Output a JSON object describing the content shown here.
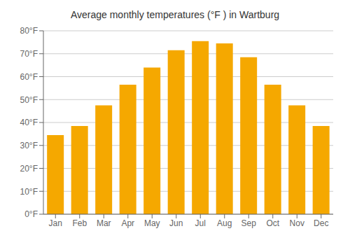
{
  "chart_data": {
    "type": "bar",
    "title": "Average monthly temperatures (°F ) in Wartburg",
    "categories": [
      "Jan",
      "Feb",
      "Mar",
      "Apr",
      "May",
      "Jun",
      "Jul",
      "Aug",
      "Sep",
      "Oct",
      "Nov",
      "Dec"
    ],
    "values": [
      34.5,
      38.5,
      47.5,
      56.5,
      64.0,
      71.5,
      75.5,
      74.5,
      68.5,
      56.5,
      47.5,
      38.5
    ],
    "color": "#F5A800",
    "ylim": [
      0,
      80
    ],
    "yticks": [
      {
        "value": 0,
        "label": "0°F"
      },
      {
        "value": 10,
        "label": "10°F"
      },
      {
        "value": 20,
        "label": "20°F"
      },
      {
        "value": 30,
        "label": "30°F"
      },
      {
        "value": 40,
        "label": "40°F"
      },
      {
        "value": 50,
        "label": "50°F"
      },
      {
        "value": 60,
        "label": "60°F"
      },
      {
        "value": 70,
        "label": "70°F"
      },
      {
        "value": 80,
        "label": "80°F"
      }
    ],
    "grid": true
  }
}
